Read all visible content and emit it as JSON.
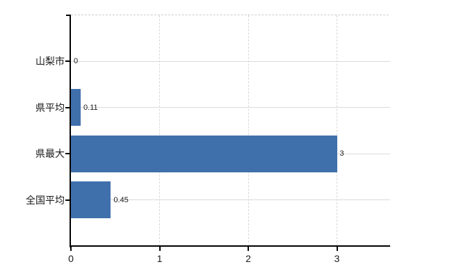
{
  "chart_data": {
    "type": "bar",
    "orientation": "horizontal",
    "title": "",
    "categories": [
      "山梨市",
      "県平均",
      "県最大",
      "全国平均"
    ],
    "values": [
      0,
      0.11,
      3,
      0.45
    ],
    "value_labels": [
      "0",
      "0.11",
      "3",
      "0.45"
    ],
    "x_ticks": [
      0,
      1,
      2,
      3
    ],
    "x_tick_labels": [
      "0",
      "1",
      "2",
      "3"
    ],
    "xlim": [
      0,
      3.6
    ],
    "grid": true,
    "legend": "none",
    "colors": {
      "bar": "#4070ac",
      "horizontal_gridline": "#d6ddd6",
      "vertical_gridline": "#d8d8da",
      "axis": "#000000",
      "plot_top_border": "#cccccc",
      "text": "#1a1a1a"
    }
  }
}
